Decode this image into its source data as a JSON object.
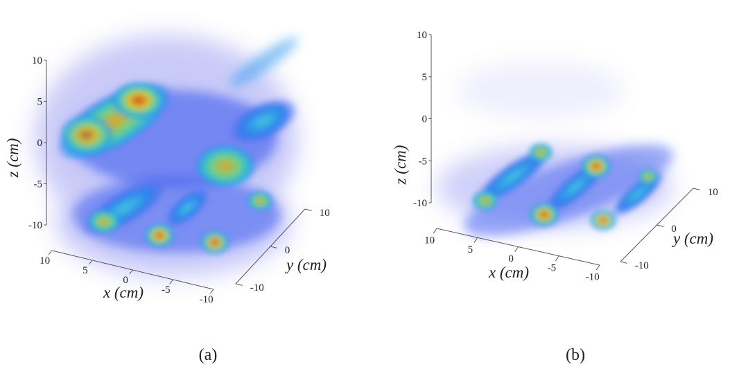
{
  "panels": [
    {
      "caption": "(a)",
      "axes": {
        "x": {
          "label": "x (cm)",
          "ticks": [
            10,
            5,
            0,
            -5,
            -10
          ]
        },
        "y": {
          "label": "y (cm)",
          "ticks": [
            10,
            0,
            -10
          ]
        },
        "z": {
          "label": "z (cm)",
          "ticks": [
            10,
            5,
            0,
            -5,
            -10
          ]
        }
      }
    },
    {
      "caption": "(b)",
      "axes": {
        "x": {
          "label": "x (cm)",
          "ticks": [
            10,
            5,
            0,
            -5,
            -10
          ]
        },
        "y": {
          "label": "y (cm)",
          "ticks": [
            10,
            0,
            -10
          ]
        },
        "z": {
          "label": "z (cm)",
          "ticks": [
            10,
            5,
            0,
            -5,
            -10
          ]
        }
      }
    }
  ]
}
